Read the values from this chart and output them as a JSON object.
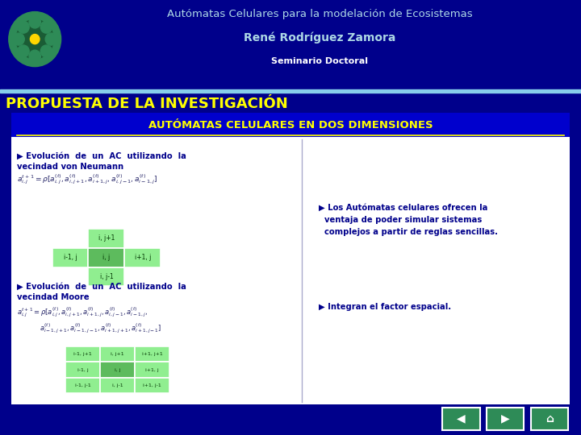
{
  "bg_dark": "#00008B",
  "bg_slide": "#F0F0F0",
  "header_bg": "#00008B",
  "title_line1": "Autómatas Celulares para la modelación de Ecosistemas",
  "title_line2": "René Rodríguez Zamora",
  "title_line3": "Seminario Doctoral",
  "title_color": "#ADD8E6",
  "subtitle3_color": "#FFFFFF",
  "propuesta_text": "PROPUESTA DE LA INVESTIGACIÓN",
  "propuesta_color": "#FFFF00",
  "section_title": "AUTÓMATAS CELULARES EN DOS DIMENSIONES",
  "section_title_color": "#FFFF00",
  "section_bg": "#0000CD",
  "left_col_texts": [
    "▶ Evolución  de  un  AC  utilizando  la\nvecindad von Neumann",
    "▶ Evolución  de  un  AC  utilizando  la\nvecindad Moore"
  ],
  "right_col_texts": [
    "▶ Los Autómatas celulares ofrecen la\nventaja de poder simular sistemas\ncomplejos a partir de reglas sencillas.",
    "▶ Integran el factor espacial."
  ],
  "cell_color_light": "#90EE90",
  "cell_color_dark": "#2E8B57",
  "text_dark": "#00008B",
  "divider_color": "#4444AA"
}
